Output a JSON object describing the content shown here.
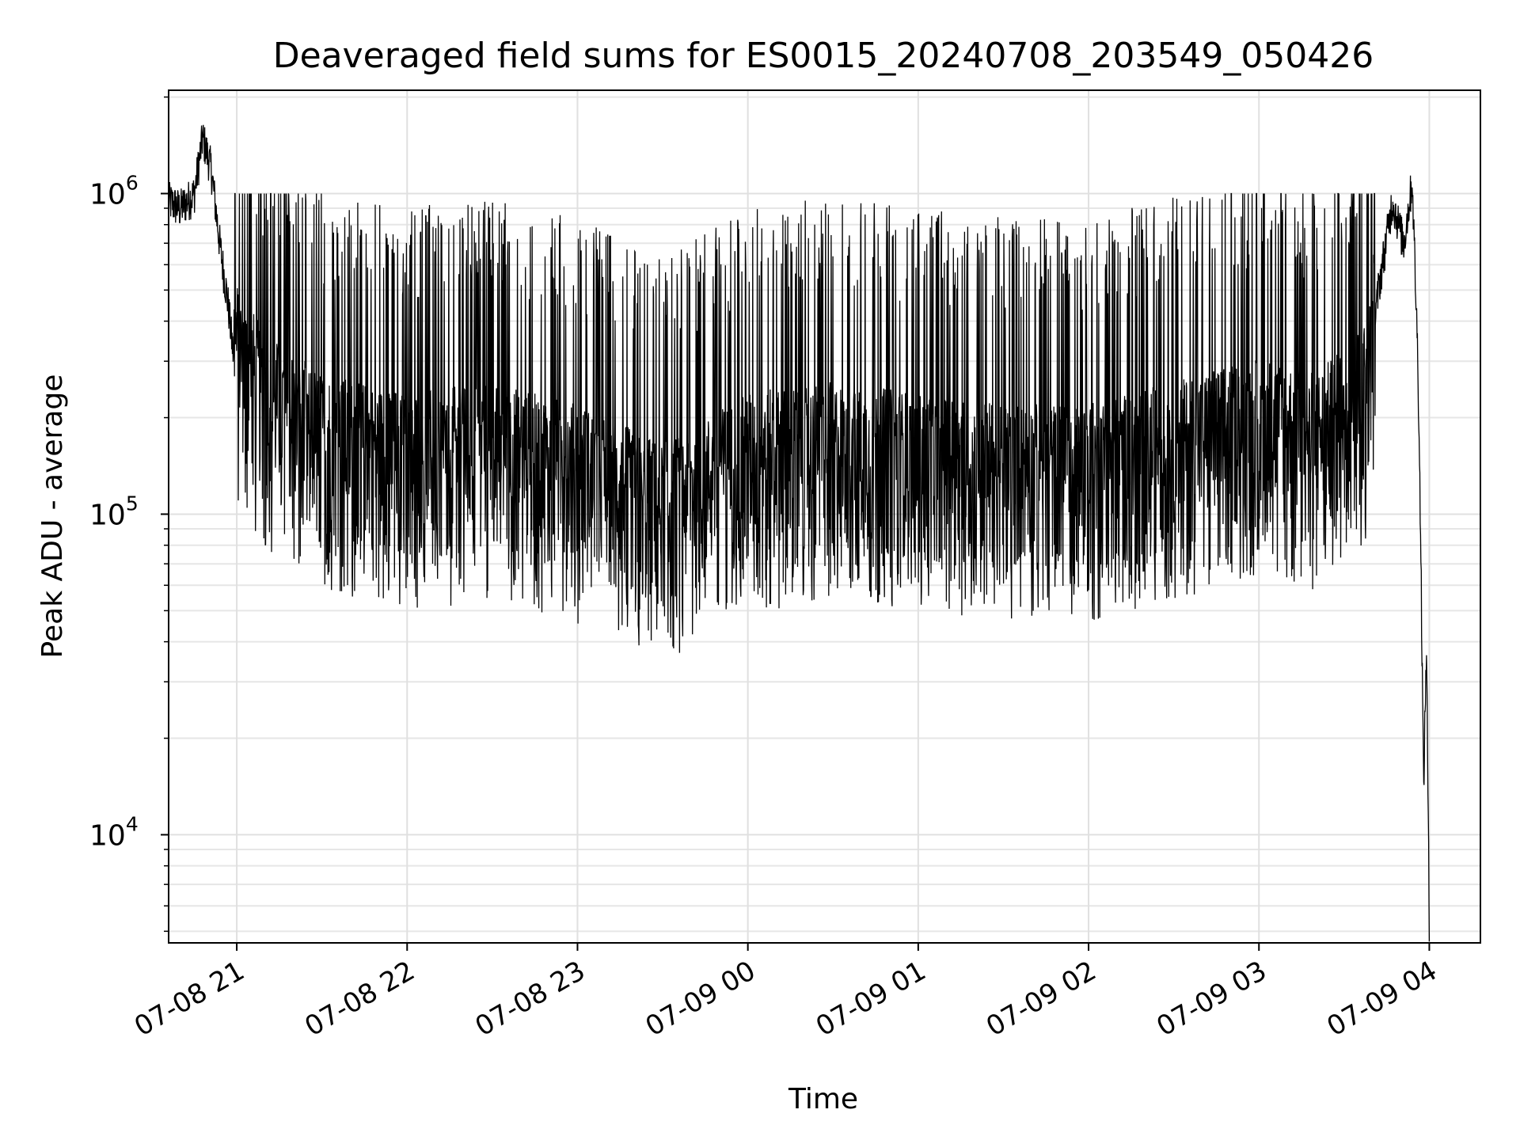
{
  "chart_data": {
    "type": "line",
    "title": "Deaveraged field sums for ES0015_20240708_203549_050426",
    "xlabel": "Time",
    "ylabel": "Peak ADU - average",
    "yscale": "log",
    "ylim": [
      4600,
      2100000
    ],
    "xlim": [
      "2024-07-08 20:36",
      "2024-07-09 04:18"
    ],
    "grid": true,
    "line_color": "#000000",
    "x_ticks": [
      {
        "t": "2024-07-08 21:00",
        "label": "07-08 21"
      },
      {
        "t": "2024-07-08 22:00",
        "label": "07-08 22"
      },
      {
        "t": "2024-07-08 23:00",
        "label": "07-08 23"
      },
      {
        "t": "2024-07-09 00:00",
        "label": "07-09 00"
      },
      {
        "t": "2024-07-09 01:00",
        "label": "07-09 01"
      },
      {
        "t": "2024-07-09 02:00",
        "label": "07-09 02"
      },
      {
        "t": "2024-07-09 03:00",
        "label": "07-09 03"
      },
      {
        "t": "2024-07-09 04:00",
        "label": "07-09 04"
      }
    ],
    "y_ticks": [
      {
        "value": 10000,
        "base": "10",
        "exp": "4"
      },
      {
        "value": 100000,
        "base": "10",
        "exp": "5"
      },
      {
        "value": 1000000,
        "base": "10",
        "exp": "6"
      }
    ],
    "series": [
      {
        "values": [
          {
            "t": "2024-07-08 20:36",
            "y": 950000
          },
          {
            "t": "2024-07-08 20:40",
            "y": 900000
          },
          {
            "t": "2024-07-08 20:45",
            "y": 1000000
          },
          {
            "t": "2024-07-08 20:48",
            "y": 1500000
          },
          {
            "t": "2024-07-08 20:51",
            "y": 1200000
          },
          {
            "t": "2024-07-08 20:54",
            "y": 700000
          },
          {
            "t": "2024-07-08 20:57",
            "y": 450000
          },
          {
            "t": "2024-07-08 20:59",
            "y": 300000
          },
          {
            "t": "2024-07-08 21:10",
            "y": 200000
          },
          {
            "t": "2024-07-08 21:30",
            "y": 150000
          },
          {
            "t": "2024-07-08 22:00",
            "y": 130000
          },
          {
            "t": "2024-07-08 22:30",
            "y": 140000
          },
          {
            "t": "2024-07-08 23:00",
            "y": 120000
          },
          {
            "t": "2024-07-08 23:30",
            "y": 90000
          },
          {
            "t": "2024-07-09 00:00",
            "y": 130000
          },
          {
            "t": "2024-07-09 00:30",
            "y": 140000
          },
          {
            "t": "2024-07-09 01:00",
            "y": 130000
          },
          {
            "t": "2024-07-09 01:30",
            "y": 120000
          },
          {
            "t": "2024-07-09 02:00",
            "y": 120000
          },
          {
            "t": "2024-07-09 02:30",
            "y": 140000
          },
          {
            "t": "2024-07-09 03:00",
            "y": 170000
          },
          {
            "t": "2024-07-09 03:20",
            "y": 150000
          },
          {
            "t": "2024-07-09 03:30",
            "y": 180000
          },
          {
            "t": "2024-07-09 03:38",
            "y": 220000
          },
          {
            "t": "2024-07-09 03:42",
            "y": 500000
          },
          {
            "t": "2024-07-09 03:47",
            "y": 950000
          },
          {
            "t": "2024-07-09 03:51",
            "y": 700000
          },
          {
            "t": "2024-07-09 03:54",
            "y": 1100000
          },
          {
            "t": "2024-07-09 03:56",
            "y": 300000
          },
          {
            "t": "2024-07-09 03:57",
            "y": 80000
          },
          {
            "t": "2024-07-09 03:58",
            "y": 14000
          },
          {
            "t": "2024-07-09 03:59",
            "y": 40000
          },
          {
            "t": "2024-07-09 04:00",
            "y": 5000
          }
        ]
      }
    ]
  }
}
